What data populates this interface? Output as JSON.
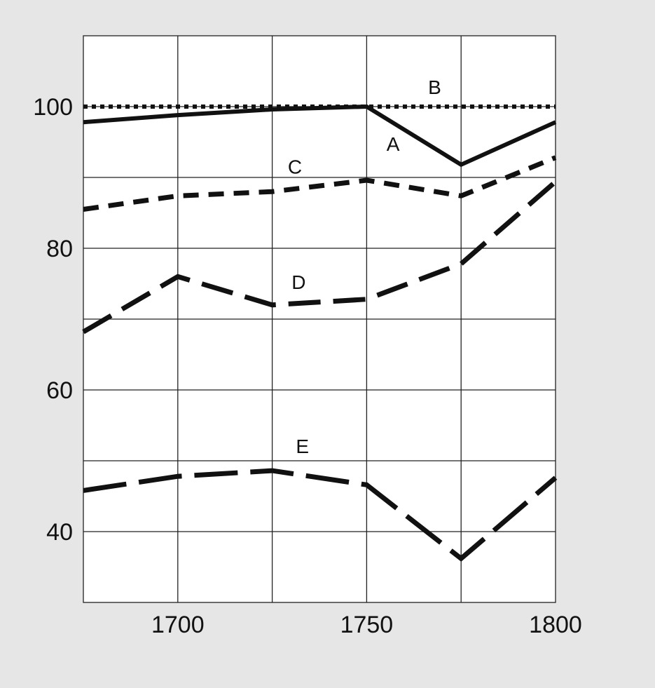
{
  "chart_data": {
    "type": "line",
    "title": "",
    "xlabel": "",
    "ylabel": "",
    "xlim": [
      1675,
      1800
    ],
    "ylim": [
      30,
      110
    ],
    "x_ticks": [
      1700,
      1750,
      1800
    ],
    "x_tick_labels": [
      "1700",
      "1750",
      "1800"
    ],
    "x_gridlines": [
      1700,
      1725,
      1750,
      1775
    ],
    "y_ticks": [
      40,
      60,
      80,
      100
    ],
    "y_tick_labels": [
      "40",
      "60",
      "80",
      "100"
    ],
    "y_gridlines": [
      40,
      50,
      60,
      70,
      80,
      90,
      100
    ],
    "grid": true,
    "legend": "none",
    "series": [
      {
        "name": "A",
        "style": "solid",
        "points": [
          [
            1675,
            97.8
          ],
          [
            1700,
            98.8
          ],
          [
            1725,
            99.6
          ],
          [
            1750,
            100.0
          ],
          [
            1775,
            91.8
          ],
          [
            1800,
            97.8
          ]
        ],
        "label_at": [
          1757,
          94.5
        ]
      },
      {
        "name": "B",
        "style": "dotted",
        "points": [
          [
            1675,
            100.0
          ],
          [
            1800,
            100.0
          ]
        ],
        "label_at": [
          1768,
          102.5
        ]
      },
      {
        "name": "C",
        "style": "short-dash",
        "points": [
          [
            1675,
            85.5
          ],
          [
            1700,
            87.4
          ],
          [
            1725,
            88.0
          ],
          [
            1750,
            89.6
          ],
          [
            1775,
            87.4
          ],
          [
            1800,
            92.8
          ]
        ],
        "label_at": [
          1731,
          91.3
        ]
      },
      {
        "name": "D",
        "style": "long-dash",
        "points": [
          [
            1675,
            68.2
          ],
          [
            1700,
            76.0
          ],
          [
            1725,
            72.0
          ],
          [
            1750,
            72.8
          ],
          [
            1775,
            77.8
          ],
          [
            1800,
            89.4
          ]
        ],
        "label_at": [
          1732,
          75.0
        ]
      },
      {
        "name": "E",
        "style": "long-dash-sparse",
        "points": [
          [
            1675,
            45.8
          ],
          [
            1700,
            47.8
          ],
          [
            1725,
            48.6
          ],
          [
            1750,
            46.6
          ],
          [
            1775,
            36.2
          ],
          [
            1800,
            47.6
          ]
        ],
        "label_at": [
          1733,
          51.8
        ]
      }
    ],
    "colors": {
      "line": "#111111",
      "grid": "#222222",
      "plot_bg": "#ffffff",
      "page_bg": "#e6e6e6"
    }
  }
}
